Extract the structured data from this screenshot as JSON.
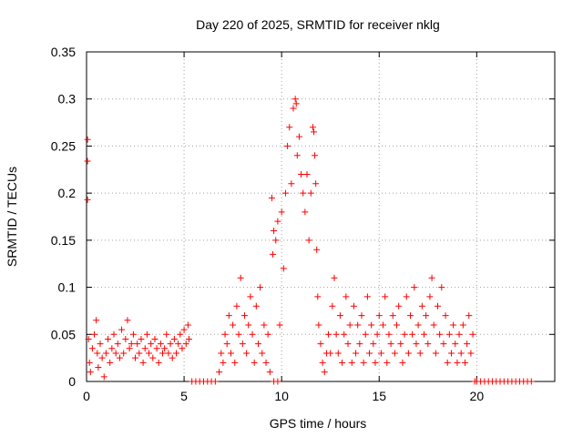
{
  "chart_data": {
    "type": "scatter",
    "title": "Day 220 of 2025, SRMTID for receiver nklg",
    "xlabel": "GPS time / hours",
    "ylabel": "SRMTID / TECUs",
    "xlim": [
      0,
      24
    ],
    "ylim": [
      0,
      0.35
    ],
    "xticks": [
      0,
      5,
      10,
      15,
      20
    ],
    "yticks": [
      0,
      0.05,
      0.1,
      0.15,
      0.2,
      0.25,
      0.3,
      0.35
    ],
    "xtick_labels": [
      "0",
      "5",
      "10",
      "15",
      "20"
    ],
    "ytick_labels": [
      "0",
      "0.05",
      "0.1",
      "0.15",
      "0.2",
      "0.25",
      "0.3",
      "0.35"
    ],
    "grid": true,
    "marker": "+",
    "color": "#ff0000",
    "series": [
      {
        "name": "SRMTID",
        "points": [
          [
            0.05,
            0.257
          ],
          [
            0.05,
            0.234
          ],
          [
            0.05,
            0.193
          ],
          [
            0.1,
            0.045
          ],
          [
            0.15,
            0.02
          ],
          [
            0.2,
            0.01
          ],
          [
            0.3,
            0.035
          ],
          [
            0.4,
            0.05
          ],
          [
            0.5,
            0.065
          ],
          [
            0.55,
            0.03
          ],
          [
            0.6,
            0.015
          ],
          [
            0.7,
            0.04
          ],
          [
            0.8,
            0.025
          ],
          [
            0.9,
            0.005
          ],
          [
            1.0,
            0.03
          ],
          [
            1.1,
            0.045
          ],
          [
            1.2,
            0.02
          ],
          [
            1.3,
            0.035
          ],
          [
            1.4,
            0.05
          ],
          [
            1.5,
            0.03
          ],
          [
            1.6,
            0.04
          ],
          [
            1.7,
            0.025
          ],
          [
            1.8,
            0.055
          ],
          [
            1.9,
            0.03
          ],
          [
            2.0,
            0.045
          ],
          [
            2.1,
            0.065
          ],
          [
            2.2,
            0.035
          ],
          [
            2.3,
            0.04
          ],
          [
            2.4,
            0.05
          ],
          [
            2.5,
            0.025
          ],
          [
            2.6,
            0.04
          ],
          [
            2.7,
            0.03
          ],
          [
            2.8,
            0.045
          ],
          [
            2.9,
            0.02
          ],
          [
            3.0,
            0.035
          ],
          [
            3.1,
            0.05
          ],
          [
            3.2,
            0.03
          ],
          [
            3.3,
            0.04
          ],
          [
            3.4,
            0.025
          ],
          [
            3.5,
            0.045
          ],
          [
            3.6,
            0.035
          ],
          [
            3.7,
            0.02
          ],
          [
            3.8,
            0.04
          ],
          [
            3.9,
            0.03
          ],
          [
            4.0,
            0.035
          ],
          [
            4.1,
            0.05
          ],
          [
            4.2,
            0.03
          ],
          [
            4.3,
            0.04
          ],
          [
            4.4,
            0.025
          ],
          [
            4.5,
            0.045
          ],
          [
            4.6,
            0.03
          ],
          [
            4.7,
            0.04
          ],
          [
            4.8,
            0.05
          ],
          [
            4.9,
            0.035
          ],
          [
            5.0,
            0.055
          ],
          [
            5.1,
            0.04
          ],
          [
            5.2,
            0.06
          ],
          [
            5.25,
            0.045
          ],
          [
            5.4,
            0
          ],
          [
            5.6,
            0
          ],
          [
            5.8,
            0
          ],
          [
            6.0,
            0
          ],
          [
            6.2,
            0
          ],
          [
            6.4,
            0
          ],
          [
            6.6,
            0
          ],
          [
            6.8,
            0.01
          ],
          [
            6.9,
            0.03
          ],
          [
            7.0,
            0.02
          ],
          [
            7.1,
            0.05
          ],
          [
            7.2,
            0.04
          ],
          [
            7.3,
            0.07
          ],
          [
            7.4,
            0.03
          ],
          [
            7.5,
            0.06
          ],
          [
            7.6,
            0.02
          ],
          [
            7.7,
            0.08
          ],
          [
            7.8,
            0.05
          ],
          [
            7.9,
            0.11
          ],
          [
            8.0,
            0.04
          ],
          [
            8.1,
            0.07
          ],
          [
            8.2,
            0.03
          ],
          [
            8.3,
            0.06
          ],
          [
            8.4,
            0.09
          ],
          [
            8.5,
            0.05
          ],
          [
            8.6,
            0.02
          ],
          [
            8.7,
            0.08
          ],
          [
            8.8,
            0.04
          ],
          [
            8.9,
            0.1
          ],
          [
            9.0,
            0.03
          ],
          [
            9.1,
            0.06
          ],
          [
            9.2,
            0.02
          ],
          [
            9.3,
            0.05
          ],
          [
            9.4,
            0.01
          ],
          [
            9.6,
            0
          ],
          [
            9.8,
            0
          ],
          [
            9.5,
            0.195
          ],
          [
            9.55,
            0.135
          ],
          [
            9.6,
            0.16
          ],
          [
            9.7,
            0.15
          ],
          [
            9.8,
            0.17
          ],
          [
            9.9,
            0.06
          ],
          [
            10.0,
            0.18
          ],
          [
            10.1,
            0.12
          ],
          [
            10.2,
            0.2
          ],
          [
            10.3,
            0.25
          ],
          [
            10.4,
            0.27
          ],
          [
            10.5,
            0.21
          ],
          [
            10.6,
            0.29
          ],
          [
            10.7,
            0.3
          ],
          [
            10.75,
            0.295
          ],
          [
            10.8,
            0.24
          ],
          [
            10.9,
            0.26
          ],
          [
            11.0,
            0.22
          ],
          [
            11.1,
            0.2
          ],
          [
            11.2,
            0.18
          ],
          [
            11.3,
            0.22
          ],
          [
            11.4,
            0.15
          ],
          [
            11.5,
            0.2
          ],
          [
            11.6,
            0.27
          ],
          [
            11.65,
            0.265
          ],
          [
            11.7,
            0.24
          ],
          [
            11.75,
            0.21
          ],
          [
            11.8,
            0.14
          ],
          [
            11.85,
            0.09
          ],
          [
            11.9,
            0.06
          ],
          [
            12.0,
            0.04
          ],
          [
            12.1,
            0.02
          ],
          [
            12.2,
            0.01
          ],
          [
            12.3,
            0.03
          ],
          [
            12.4,
            0.05
          ],
          [
            12.5,
            0.03
          ],
          [
            12.6,
            0.08
          ],
          [
            12.7,
            0.11
          ],
          [
            12.8,
            0.05
          ],
          [
            12.9,
            0.03
          ],
          [
            13.0,
            0.07
          ],
          [
            13.1,
            0.02
          ],
          [
            13.2,
            0.05
          ],
          [
            13.3,
            0.09
          ],
          [
            13.4,
            0.04
          ],
          [
            13.5,
            0.06
          ],
          [
            13.6,
            0.02
          ],
          [
            13.7,
            0.08
          ],
          [
            13.8,
            0.03
          ],
          [
            13.9,
            0.06
          ],
          [
            14.0,
            0.04
          ],
          [
            14.1,
            0.07
          ],
          [
            14.2,
            0.02
          ],
          [
            14.3,
            0.05
          ],
          [
            14.4,
            0.09
          ],
          [
            14.5,
            0.03
          ],
          [
            14.6,
            0.06
          ],
          [
            14.7,
            0.04
          ],
          [
            14.8,
            0.02
          ],
          [
            14.9,
            0.05
          ],
          [
            15.0,
            0.07
          ],
          [
            15.1,
            0.03
          ],
          [
            15.2,
            0.06
          ],
          [
            15.3,
            0.09
          ],
          [
            15.4,
            0.02
          ],
          [
            15.5,
            0.05
          ],
          [
            15.6,
            0.04
          ],
          [
            15.7,
            0.07
          ],
          [
            15.8,
            0.03
          ],
          [
            15.9,
            0.06
          ],
          [
            16.0,
            0.08
          ],
          [
            16.1,
            0.04
          ],
          [
            16.2,
            0.02
          ],
          [
            16.3,
            0.05
          ],
          [
            16.4,
            0.09
          ],
          [
            16.5,
            0.03
          ],
          [
            16.6,
            0.07
          ],
          [
            16.7,
            0.05
          ],
          [
            16.8,
            0.1
          ],
          [
            16.9,
            0.04
          ],
          [
            17.0,
            0.06
          ],
          [
            17.1,
            0.03
          ],
          [
            17.2,
            0.08
          ],
          [
            17.3,
            0.05
          ],
          [
            17.4,
            0.07
          ],
          [
            17.5,
            0.04
          ],
          [
            17.6,
            0.09
          ],
          [
            17.7,
            0.11
          ],
          [
            17.8,
            0.06
          ],
          [
            17.9,
            0.03
          ],
          [
            18.0,
            0.08
          ],
          [
            18.1,
            0.05
          ],
          [
            18.2,
            0.1
          ],
          [
            18.3,
            0.04
          ],
          [
            18.4,
            0.07
          ],
          [
            18.5,
            0.02
          ],
          [
            18.6,
            0.05
          ],
          [
            18.7,
            0.03
          ],
          [
            18.8,
            0.06
          ],
          [
            18.9,
            0.04
          ],
          [
            19.0,
            0.02
          ],
          [
            19.1,
            0.05
          ],
          [
            19.2,
            0.03
          ],
          [
            19.3,
            0.06
          ],
          [
            19.4,
            0.02
          ],
          [
            19.5,
            0.04
          ],
          [
            19.6,
            0.07
          ],
          [
            19.7,
            0.03
          ],
          [
            19.8,
            0.05
          ],
          [
            19.9,
            0
          ],
          [
            20.0,
            0
          ],
          [
            20.2,
            0
          ],
          [
            20.4,
            0
          ],
          [
            20.6,
            0
          ],
          [
            20.8,
            0
          ],
          [
            21.0,
            0
          ],
          [
            21.2,
            0
          ],
          [
            21.4,
            0
          ],
          [
            21.6,
            0
          ],
          [
            21.8,
            0
          ],
          [
            22.0,
            0
          ],
          [
            22.2,
            0
          ],
          [
            22.4,
            0
          ],
          [
            22.6,
            0
          ],
          [
            22.8,
            0
          ]
        ]
      }
    ]
  }
}
